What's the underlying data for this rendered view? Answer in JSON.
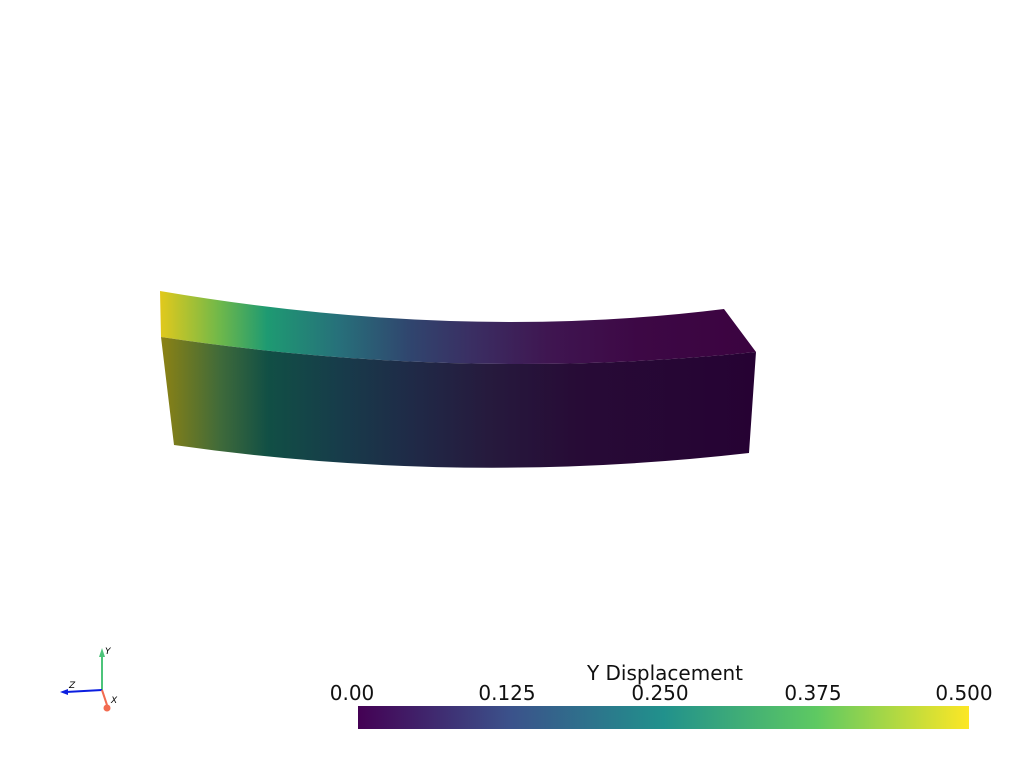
{
  "scalar_bar": {
    "title": "Y Displacement",
    "colormap": "viridis",
    "range": [
      0.0,
      0.5
    ],
    "ticks": [
      "0.00",
      "0.125",
      "0.250",
      "0.375",
      "0.500"
    ],
    "colors": [
      "#440154",
      "#3b528b",
      "#21918c",
      "#5ec962",
      "#fde725"
    ]
  },
  "axes_widget": {
    "x_label": "X",
    "y_label": "Y",
    "z_label": "Z",
    "x_color": "#f26b50",
    "y_color": "#4cc47a",
    "z_color": "#0b1ee0"
  },
  "background": "#ffffff"
}
